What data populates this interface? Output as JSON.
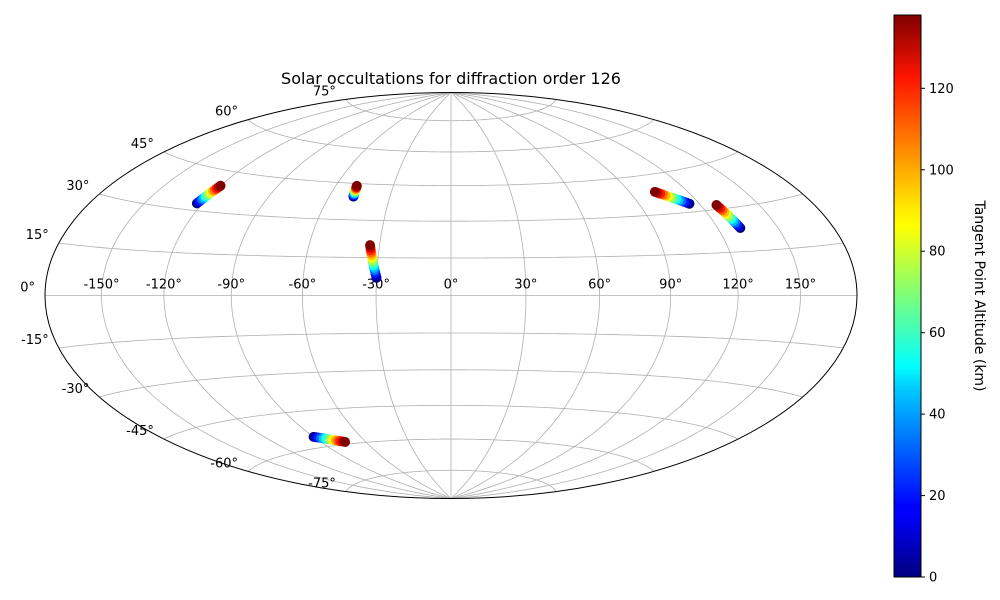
{
  "chart_data": {
    "type": "scatter",
    "projection": "hammer",
    "title": "Solar occultations for diffraction order 126",
    "xlabel": "",
    "ylabel": "",
    "grid": true,
    "lon_ticks": [
      -150,
      -120,
      -90,
      -60,
      -30,
      0,
      30,
      60,
      90,
      120,
      150
    ],
    "lon_tick_labels": [
      "-150°",
      "-120°",
      "-90°",
      "-60°",
      "-30°",
      "0°",
      "30°",
      "60°",
      "90°",
      "120°",
      "150°"
    ],
    "lat_ticks": [
      -75,
      -60,
      -45,
      -30,
      -15,
      0,
      15,
      30,
      45,
      60,
      75
    ],
    "lat_tick_labels": [
      "-75°",
      "-60°",
      "-45°",
      "-30°",
      "-15°",
      "0°",
      "15°",
      "30°",
      "45°",
      "60°",
      "75°"
    ],
    "colorbar": {
      "label": "Tangent Point Altitude (km)",
      "colormap": "jet",
      "range": [
        0,
        138
      ],
      "ticks": [
        0,
        20,
        40,
        60,
        80,
        100,
        120
      ],
      "tick_labels": [
        "0",
        "20",
        "40",
        "60",
        "80",
        "100",
        "120"
      ]
    },
    "tracks": [
      {
        "start": {
          "lon": -123,
          "lat": 32.5,
          "alt": 0
        },
        "end": {
          "lon": -120,
          "lat": 39.5,
          "alt": 138
        }
      },
      {
        "start": {
          "lon": -48,
          "lat": 39.5,
          "alt": 0
        },
        "end": {
          "lon": -49,
          "lat": 44,
          "alt": 138
        }
      },
      {
        "start": {
          "lon": -30,
          "lat": 7,
          "alt": 0
        },
        "end": {
          "lon": -34,
          "lat": 20,
          "alt": 138
        }
      },
      {
        "start": {
          "lon": 115,
          "lat": 33,
          "alt": 0
        },
        "end": {
          "lon": 103,
          "lat": 38.5,
          "alt": 138
        }
      },
      {
        "start": {
          "lon": 131,
          "lat": 23,
          "alt": 0
        },
        "end": {
          "lon": 128,
          "lat": 31.5,
          "alt": 138
        }
      },
      {
        "start": {
          "lon": -90,
          "lat": -55.5,
          "alt": 0
        },
        "end": {
          "lon": -74,
          "lat": -59,
          "alt": 138
        }
      }
    ],
    "points_per_track": 14
  }
}
